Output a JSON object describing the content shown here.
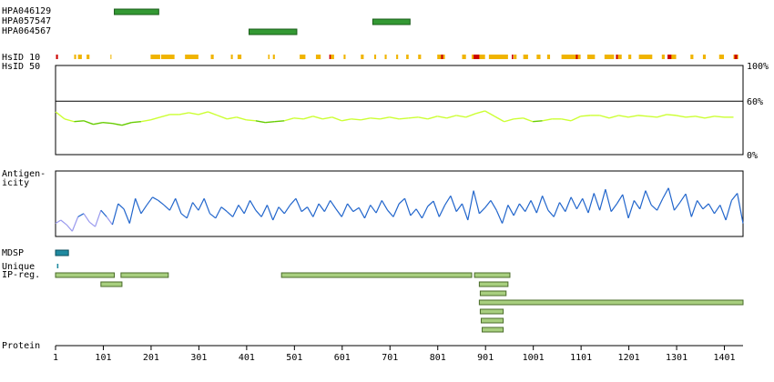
{
  "chart_data": {
    "type": "protein-feature-map",
    "protein_length": 1440,
    "antibodies": [
      {
        "name": "HPA046129",
        "start": 124,
        "end": 217
      },
      {
        "name": "HPA057547",
        "start": 665,
        "end": 743
      },
      {
        "name": "HPA064567",
        "start": 406,
        "end": 506
      }
    ],
    "hsid10": {
      "label": "HsID 10",
      "colors": {
        "low": "#f0b400",
        "high": "#cc0000"
      },
      "orange_segments": [
        [
          2,
          4
        ],
        [
          40,
          44
        ],
        [
          48,
          56
        ],
        [
          66,
          72
        ],
        [
          116,
          118
        ],
        [
          200,
          220
        ],
        [
          222,
          250
        ],
        [
          272,
          300
        ],
        [
          326,
          332
        ],
        [
          368,
          372
        ],
        [
          382,
          390
        ],
        [
          446,
          449
        ],
        [
          456,
          460
        ],
        [
          512,
          524
        ],
        [
          546,
          556
        ],
        [
          576,
          584
        ],
        [
          604,
          608
        ],
        [
          640,
          646
        ],
        [
          668,
          672
        ],
        [
          690,
          694
        ],
        [
          714,
          718
        ],
        [
          735,
          740
        ],
        [
          760,
          766
        ],
        [
          800,
          816
        ],
        [
          852,
          860
        ],
        [
          872,
          900
        ],
        [
          908,
          948
        ],
        [
          960,
          966
        ],
        [
          980,
          990
        ],
        [
          1008,
          1016
        ],
        [
          1030,
          1036
        ],
        [
          1060,
          1100
        ],
        [
          1114,
          1130
        ],
        [
          1150,
          1170
        ],
        [
          1178,
          1186
        ],
        [
          1200,
          1206
        ],
        [
          1222,
          1250
        ],
        [
          1270,
          1276
        ],
        [
          1282,
          1300
        ],
        [
          1330,
          1336
        ],
        [
          1356,
          1362
        ],
        [
          1390,
          1400
        ],
        [
          1420,
          1430
        ]
      ],
      "red_segments": [
        [
          2,
          6
        ],
        [
          574,
          577
        ],
        [
          808,
          812
        ],
        [
          876,
          888
        ],
        [
          956,
          959
        ],
        [
          1090,
          1094
        ],
        [
          1174,
          1178
        ],
        [
          1282,
          1290
        ],
        [
          1422,
          1428
        ]
      ]
    },
    "hsid50": {
      "label": "HsID 50",
      "ylim": [
        0,
        100
      ],
      "ticks": [
        "100%",
        "60%",
        "0%"
      ],
      "reference_line": 60,
      "colors": {
        "low": "#66cc00",
        "high": "#ccff33"
      },
      "x": [
        1,
        20,
        40,
        60,
        80,
        100,
        120,
        140,
        160,
        180,
        200,
        220,
        240,
        260,
        280,
        300,
        320,
        340,
        360,
        380,
        400,
        420,
        440,
        460,
        480,
        500,
        520,
        540,
        560,
        580,
        600,
        620,
        640,
        660,
        680,
        700,
        720,
        740,
        760,
        780,
        800,
        820,
        840,
        860,
        880,
        900,
        920,
        940,
        960,
        980,
        1000,
        1020,
        1040,
        1060,
        1080,
        1100,
        1120,
        1140,
        1160,
        1180,
        1200,
        1220,
        1240,
        1260,
        1280,
        1300,
        1320,
        1340,
        1360,
        1380,
        1400,
        1420
      ],
      "values": [
        48,
        40,
        37,
        38,
        34,
        36,
        35,
        33,
        36,
        37,
        39,
        42,
        45,
        45,
        47,
        45,
        48,
        44,
        40,
        42,
        39,
        38,
        36,
        37,
        38,
        41,
        40,
        43,
        40,
        42,
        38,
        40,
        39,
        41,
        40,
        42,
        40,
        41,
        42,
        40,
        43,
        41,
        44,
        42,
        46,
        49,
        43,
        37,
        40,
        41,
        37,
        38,
        40,
        40,
        38,
        43,
        44,
        44,
        41,
        44,
        42,
        44,
        43,
        42,
        45,
        44,
        42,
        43,
        41,
        43,
        42,
        42
      ]
    },
    "antigenicity": {
      "label": "Antigen-\nicity",
      "label_lines": [
        "Antigen-",
        "icity"
      ],
      "colors": {
        "low": "#9999ee",
        "high": "#2266cc"
      },
      "ylim": [
        0,
        100
      ],
      "x": [
        1,
        12,
        24,
        36,
        48,
        60,
        72,
        84,
        96,
        108,
        120,
        132,
        144,
        156,
        168,
        180,
        192,
        204,
        216,
        228,
        240,
        252,
        264,
        276,
        288,
        300,
        312,
        324,
        336,
        348,
        360,
        372,
        384,
        396,
        408,
        420,
        432,
        444,
        456,
        468,
        480,
        492,
        504,
        516,
        528,
        540,
        552,
        564,
        576,
        588,
        600,
        612,
        624,
        636,
        648,
        660,
        672,
        684,
        696,
        708,
        720,
        732,
        744,
        756,
        768,
        780,
        792,
        804,
        816,
        828,
        840,
        852,
        864,
        876,
        888,
        900,
        912,
        924,
        936,
        948,
        960,
        972,
        984,
        996,
        1008,
        1020,
        1032,
        1044,
        1056,
        1068,
        1080,
        1092,
        1104,
        1116,
        1128,
        1140,
        1152,
        1164,
        1176,
        1188,
        1200,
        1212,
        1224,
        1236,
        1248,
        1260,
        1272,
        1284,
        1296,
        1308,
        1320,
        1332,
        1344,
        1356,
        1368,
        1380,
        1392,
        1404,
        1416,
        1428,
        1440
      ],
      "values": [
        20,
        25,
        18,
        8,
        30,
        35,
        22,
        15,
        40,
        30,
        18,
        50,
        42,
        20,
        58,
        35,
        48,
        60,
        55,
        48,
        40,
        58,
        35,
        28,
        52,
        40,
        58,
        35,
        28,
        45,
        38,
        30,
        48,
        35,
        55,
        40,
        30,
        48,
        25,
        45,
        35,
        48,
        58,
        38,
        45,
        30,
        50,
        38,
        55,
        42,
        30,
        50,
        38,
        44,
        28,
        48,
        36,
        55,
        40,
        30,
        50,
        58,
        32,
        42,
        28,
        46,
        54,
        30,
        48,
        62,
        38,
        50,
        25,
        70,
        35,
        44,
        55,
        40,
        20,
        48,
        32,
        50,
        38,
        55,
        36,
        62,
        40,
        30,
        52,
        38,
        60,
        42,
        58,
        36,
        66,
        40,
        72,
        38,
        50,
        64,
        28,
        55,
        42,
        70,
        48,
        40,
        58,
        74,
        40,
        52,
        65,
        30,
        55,
        42,
        50,
        35,
        48,
        25,
        55,
        66,
        20
      ]
    },
    "tracks": [
      {
        "label": "MDSP",
        "color": "#1f8aa0",
        "segments": [
          [
            1,
            28
          ]
        ]
      },
      {
        "label": "Unique",
        "color": "#1f8aa0",
        "segments": [
          [
            4,
            7
          ]
        ]
      },
      {
        "label": "IP-reg.",
        "color": "#a8cf7f",
        "rows": [
          [
            [
              1,
              124
            ],
            [
              138,
              237
            ],
            [
              474,
              872
            ],
            [
              878,
              952
            ]
          ],
          [
            [
              96,
              140
            ],
            [
              888,
              948
            ]
          ],
          [
            [
              890,
              944
            ]
          ],
          [
            [
              888,
              1440
            ]
          ],
          [
            [
              890,
              938
            ]
          ],
          [
            [
              892,
              938
            ]
          ],
          [
            [
              894,
              938
            ]
          ]
        ]
      }
    ],
    "protein_axis": {
      "label": "Protein",
      "ticks": [
        1,
        101,
        201,
        301,
        401,
        501,
        601,
        701,
        801,
        901,
        1001,
        1101,
        1201,
        1301,
        1401
      ]
    }
  }
}
